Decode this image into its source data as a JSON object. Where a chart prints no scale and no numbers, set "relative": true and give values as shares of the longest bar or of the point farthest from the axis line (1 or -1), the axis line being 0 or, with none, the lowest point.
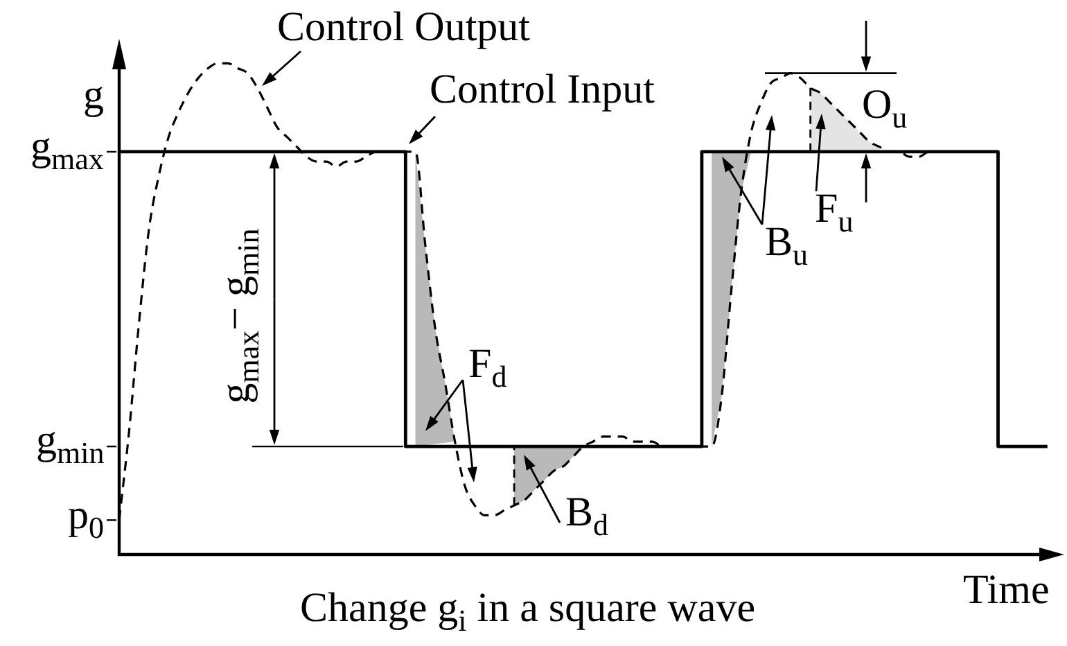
{
  "chart_data": {
    "type": "line",
    "relative": true,
    "xlabel": "Time",
    "ylabel": "g",
    "categories": [
      null,
      null,
      null,
      null,
      null,
      null,
      null,
      null,
      null,
      null,
      null,
      null,
      null,
      null,
      null,
      null,
      null,
      null,
      null,
      null,
      null,
      null,
      null,
      null,
      null,
      null,
      null,
      null,
      null,
      null,
      null,
      null,
      null,
      null,
      null,
      null,
      null,
      null,
      null,
      null,
      null,
      null,
      null,
      null,
      null,
      null,
      null,
      null,
      null,
      null,
      null,
      null,
      null,
      null,
      null,
      null,
      null,
      null,
      null,
      null,
      null,
      null,
      null,
      null,
      null,
      null,
      null,
      null,
      null,
      null,
      null,
      null,
      null,
      null,
      null,
      null,
      null,
      null,
      null,
      null,
      null,
      null,
      null,
      null,
      null,
      null,
      null,
      null,
      null,
      null,
      null,
      null,
      null,
      null,
      null,
      null
    ],
    "series": [
      {
        "name": "Control Input",
        "type": "step",
        "color": "#000000",
        "line_style": "solid",
        "values": [
          0.82,
          0.82,
          0.82,
          0.82,
          0.82,
          0.82,
          0.82,
          0.82,
          0.82,
          0.82,
          0.82,
          0.82,
          0.82,
          0.82,
          0.82,
          0.82,
          0.82,
          0.82,
          0.82,
          0.82,
          0.82,
          0.82,
          0.82,
          0.82,
          0.82,
          0.82,
          0.82,
          0.82,
          0.82,
          0.82,
          0.22,
          0.22,
          0.22,
          0.22,
          0.22,
          0.22,
          0.22,
          0.22,
          0.22,
          0.22,
          0.22,
          0.22,
          0.22,
          0.22,
          0.22,
          0.22,
          0.22,
          0.22,
          0.22,
          0.22,
          0.22,
          0.22,
          0.22,
          0.22,
          0.22,
          0.22,
          0.22,
          0.22,
          0.22,
          0.22,
          0.82,
          0.82,
          0.82,
          0.82,
          0.82,
          0.82,
          0.82,
          0.82,
          0.82,
          0.82,
          0.82,
          0.82,
          0.82,
          0.82,
          0.82,
          0.82,
          0.82,
          0.82,
          0.82,
          0.82,
          0.82,
          0.82,
          0.82,
          0.82,
          0.82,
          0.82,
          0.82,
          0.82,
          0.82,
          0.82,
          0.22,
          0.22,
          0.22,
          0.22,
          0.22,
          null
        ]
      },
      {
        "name": "Control Output",
        "color": "#000000",
        "line_style": "dashed",
        "values": [
          0.07,
          0.25,
          0.47,
          0.66,
          0.77,
          0.85,
          0.9,
          0.94,
          0.97,
          0.99,
          1.0,
          1.0,
          0.99,
          0.98,
          0.95,
          0.91,
          0.87,
          0.85,
          0.83,
          0.81,
          0.8,
          0.8,
          0.79,
          0.8,
          0.8,
          0.81,
          0.82,
          0.82,
          0.82,
          0.82,
          0.82,
          0.63,
          0.46,
          0.35,
          0.23,
          0.14,
          0.1,
          0.08,
          0.08,
          0.09,
          0.1,
          0.11,
          0.13,
          0.15,
          0.17,
          0.18,
          0.2,
          0.22,
          0.23,
          0.24,
          0.24,
          0.24,
          0.23,
          0.23,
          0.23,
          0.22,
          0.22,
          0.22,
          0.22,
          0.22,
          0.22,
          0.32,
          0.54,
          0.74,
          0.86,
          0.92,
          0.96,
          0.97,
          0.98,
          0.97,
          0.95,
          0.94,
          0.92,
          0.9,
          0.88,
          0.86,
          0.84,
          0.83,
          0.82,
          0.82,
          0.81,
          0.81,
          0.82,
          0.82,
          0.82,
          0.82,
          null,
          null,
          null,
          null,
          null,
          null,
          null,
          null,
          null,
          null
        ]
      }
    ],
    "annotations": [
      "Change g$_{i}$ in a square wave",
      "g$_{max}$",
      "g$_{min}$",
      "p$_{0}$",
      "g$_{max}$− g$_{min}$",
      "F$_{d}$",
      "B$_{d}$",
      "B$_{u}$",
      "F$_{u}$",
      "O$_{u}$"
    ]
  }
}
